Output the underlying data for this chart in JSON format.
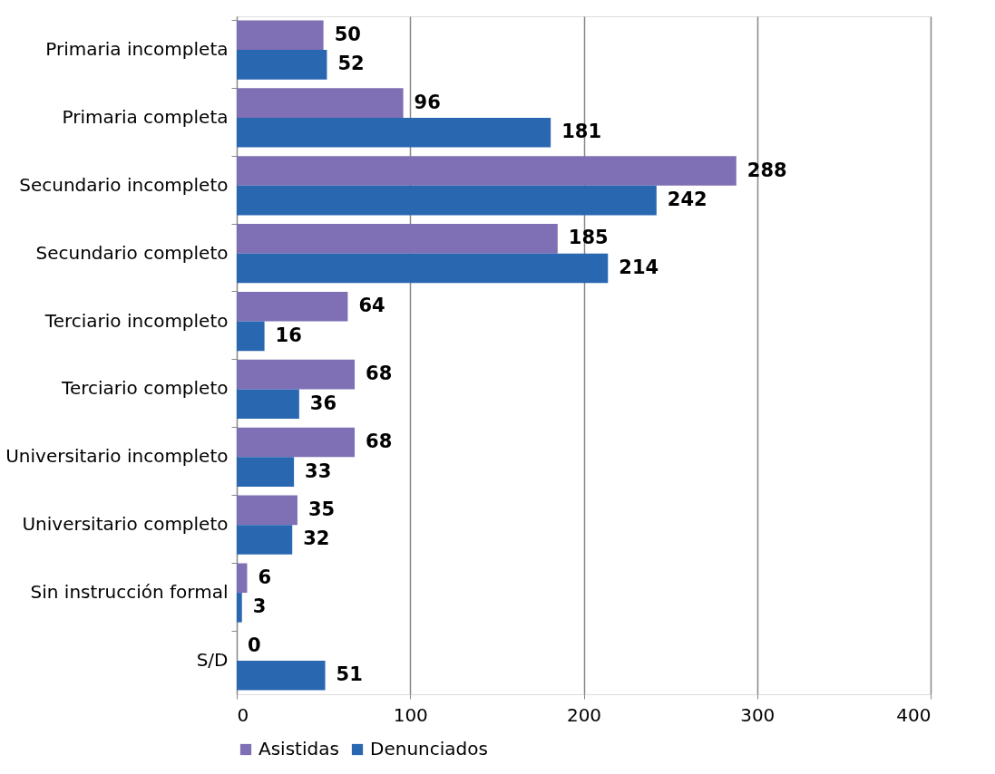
{
  "chart_data": {
    "type": "bar",
    "orientation": "horizontal",
    "categories": [
      "Primaria incompleta",
      "Primaria completa",
      "Secundario incompleto",
      "Secundario completo",
      "Terciario incompleto",
      "Terciario completo",
      "Universitario incompleto",
      "Universitario completo",
      "Sin instrucción formal",
      "S/D"
    ],
    "series": [
      {
        "name": "Asistidas",
        "color": "#7f6fb5",
        "values": [
          50,
          96,
          288,
          185,
          64,
          68,
          68,
          35,
          6,
          0
        ]
      },
      {
        "name": "Denunciados",
        "color": "#2a67b1",
        "values": [
          52,
          181,
          242,
          214,
          16,
          36,
          33,
          32,
          3,
          51
        ]
      }
    ],
    "xlim": [
      0,
      400
    ],
    "xticks": [
      0,
      100,
      200,
      300,
      400
    ],
    "grid": "x",
    "legend": "bottom",
    "data_labels": true
  }
}
